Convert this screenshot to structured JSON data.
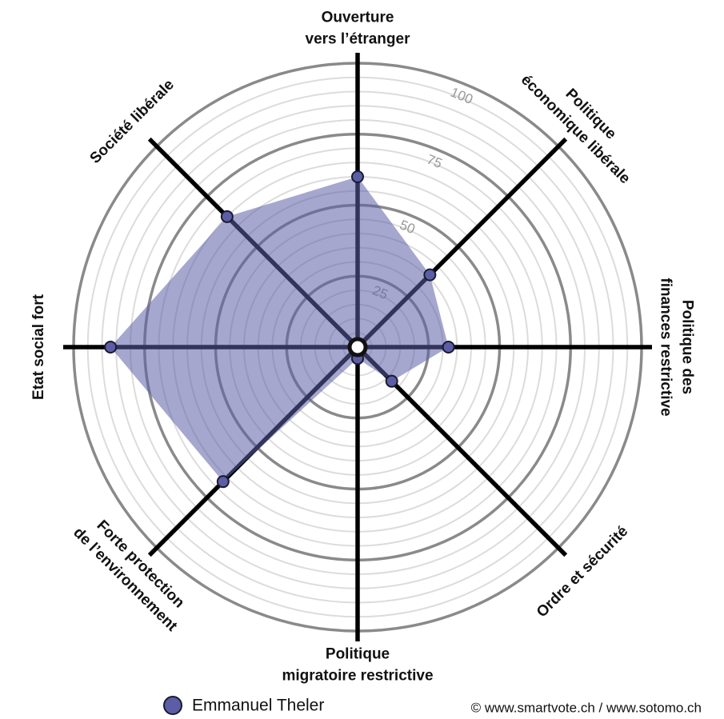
{
  "chart_data": {
    "type": "radar",
    "axes": [
      [
        "Ouverture",
        "vers l’étranger"
      ],
      [
        "Politique",
        "économique libérale"
      ],
      [
        "Politique des",
        "finances restrictive"
      ],
      [
        "Ordre et sécurité"
      ],
      [
        "Politique",
        "migratoire restrictive"
      ],
      [
        "Forte protection",
        "de l’environnement"
      ],
      [
        "Etat social fort"
      ],
      [
        "Société libérale"
      ]
    ],
    "series": [
      {
        "name": "Emmanuel Theler",
        "color": "#5b5ea6",
        "values": [
          60,
          36,
          32,
          17,
          4,
          67,
          87,
          65
        ]
      }
    ],
    "rlim": [
      0,
      100
    ],
    "rticks": [
      25,
      50,
      75,
      100
    ],
    "rgrid": [
      5,
      10,
      15,
      20,
      25,
      30,
      35,
      40,
      45,
      50,
      55,
      60,
      65,
      70,
      75,
      80,
      85,
      90,
      95,
      100
    ],
    "credit": "© www.smartvote.ch / www.sotomo.ch"
  }
}
